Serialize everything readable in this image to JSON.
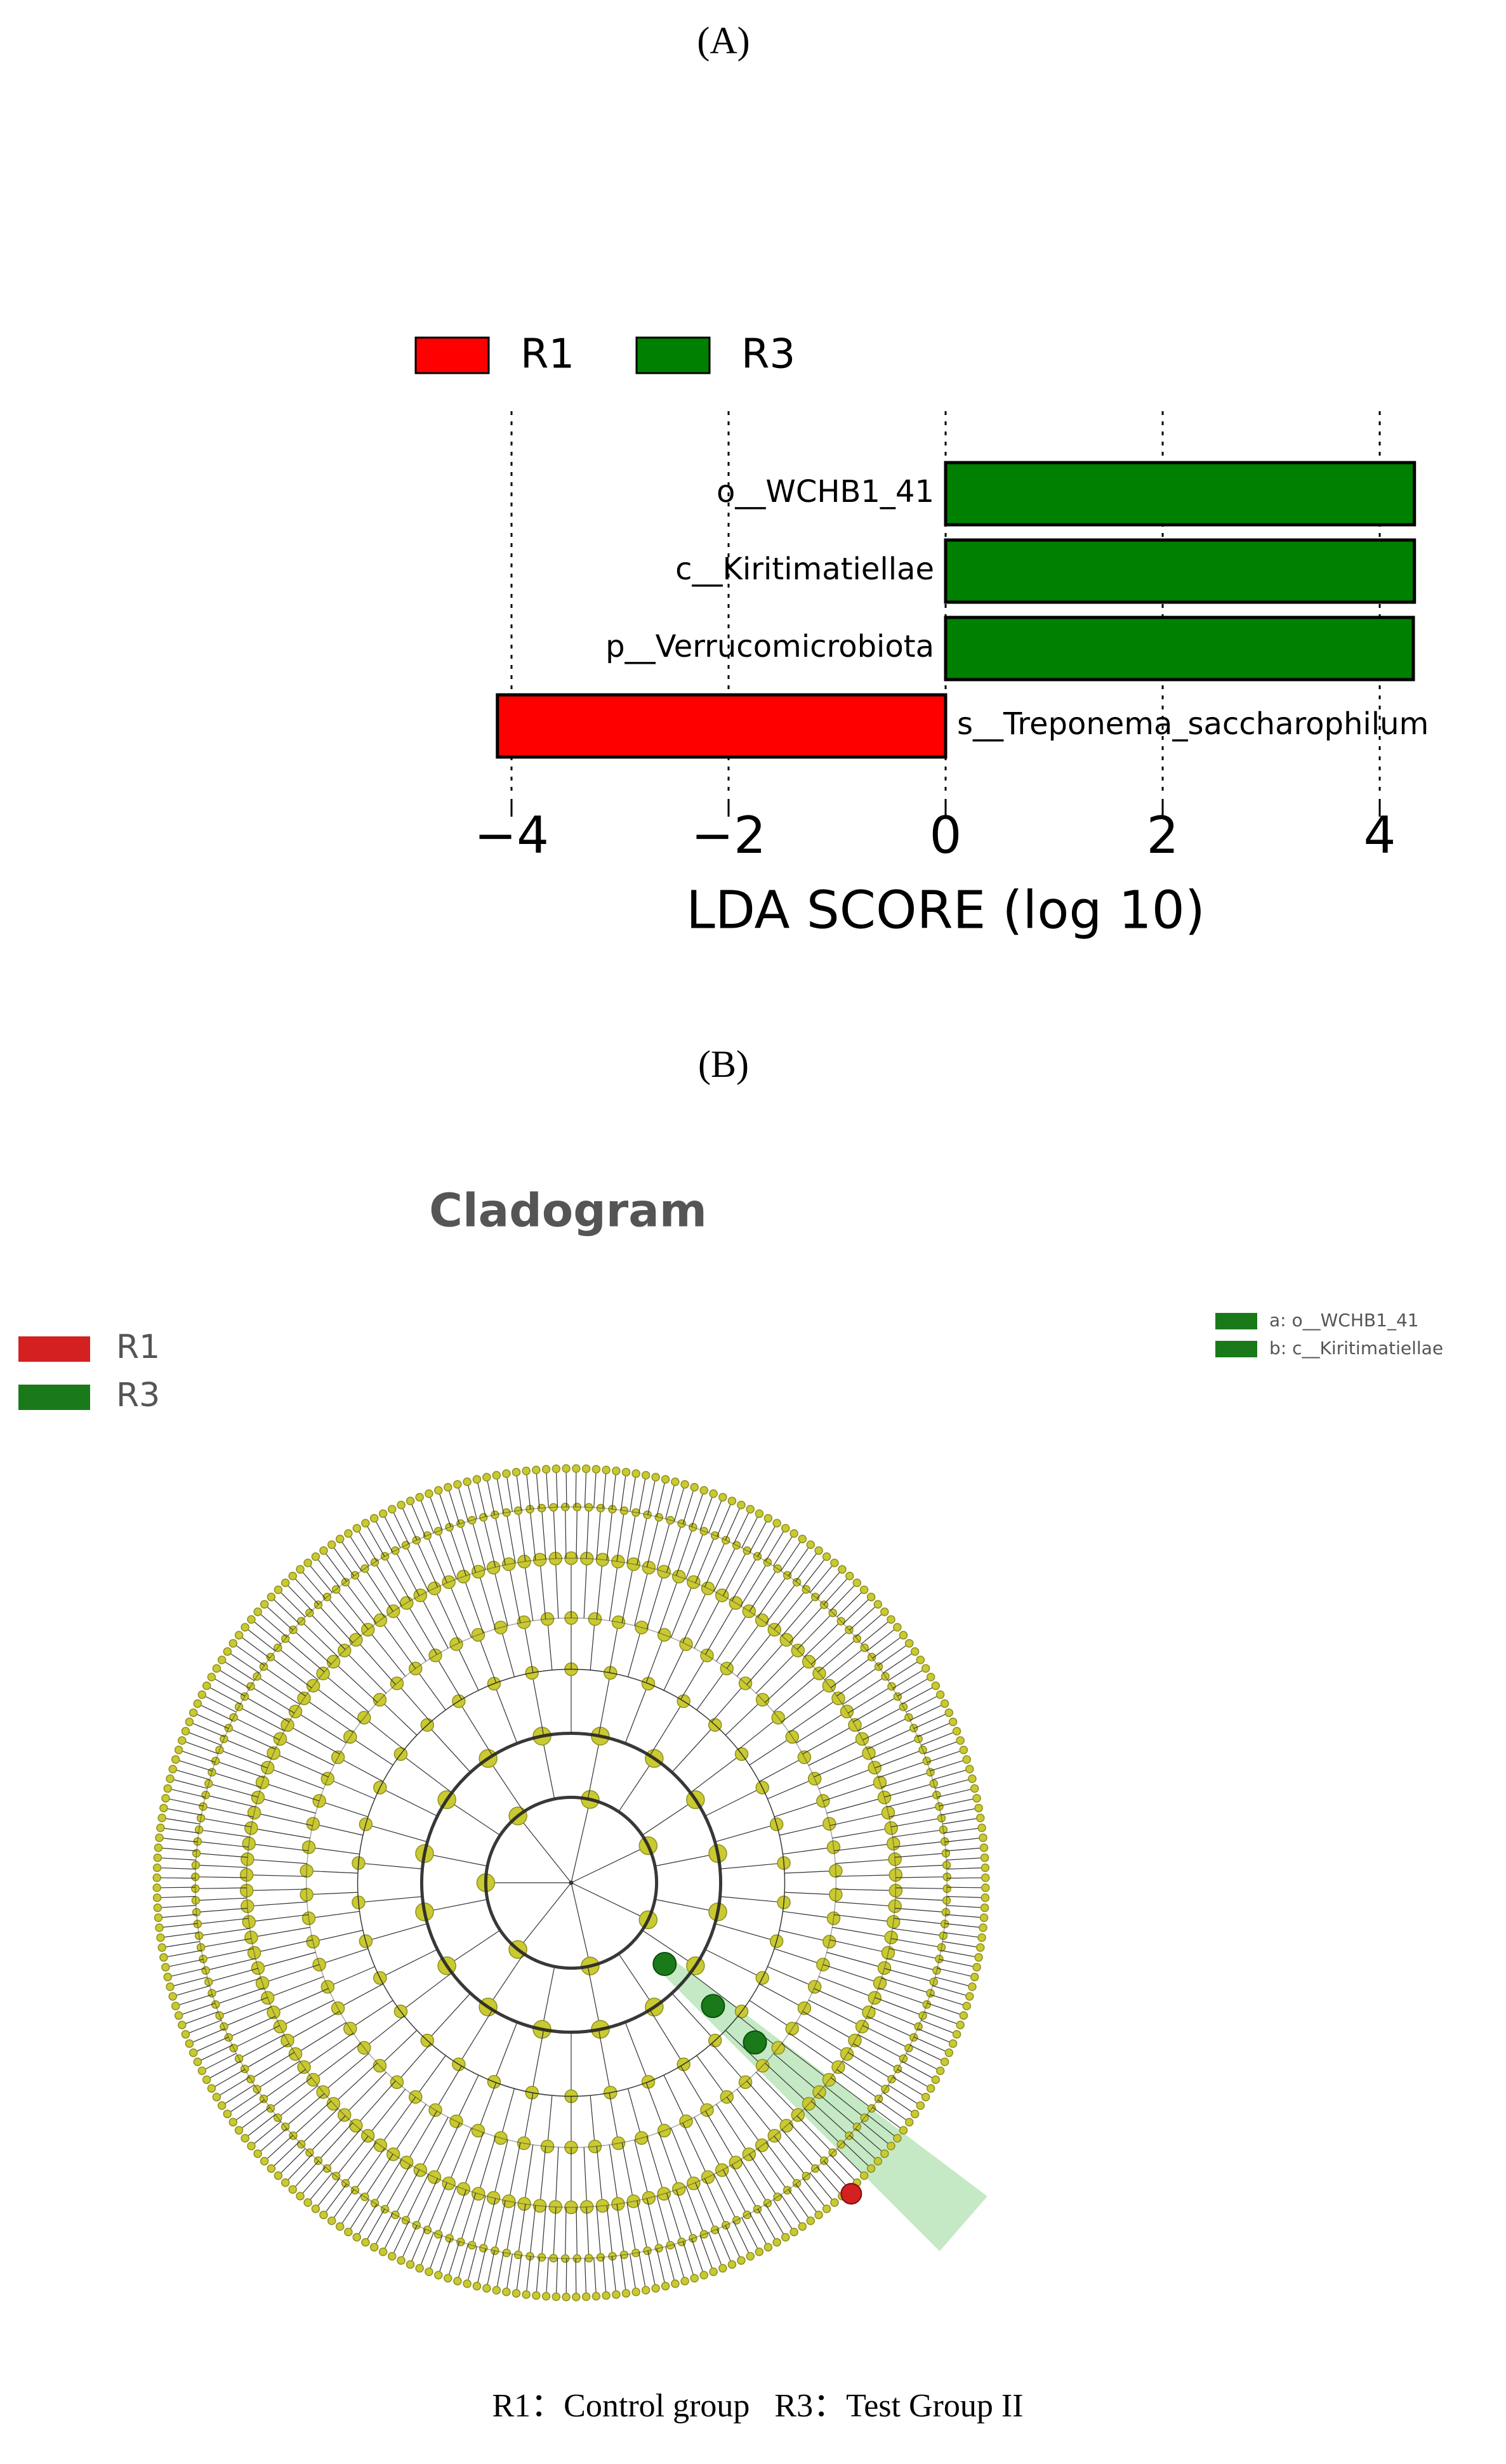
{
  "panel_labels": [
    "(A)",
    "(B)"
  ],
  "chart_data": {
    "type": "bar",
    "orientation": "horizontal",
    "categories": [
      "o__WCHB1_41",
      "c__Kiritimatiellae",
      "p__Verrucomicrobiota",
      "s__Treponema_saccharophilum"
    ],
    "series": [
      {
        "name": "R1",
        "color": "#ff0000",
        "values": [
          null,
          null,
          null,
          -4.13
        ]
      },
      {
        "name": "R3",
        "color": "#008000",
        "values": [
          4.32,
          4.32,
          4.31,
          null
        ]
      }
    ],
    "xlabel": "LDA SCORE (log 10)",
    "xlim": [
      -4.4,
      4.4
    ],
    "xticks": [
      {
        "value": -4,
        "label": "−4"
      },
      {
        "value": -2,
        "label": "−2"
      },
      0,
      2,
      4
    ],
    "grid": true
  },
  "cladogram": {
    "title": "Cladogram",
    "legend": [
      {
        "name": "R1",
        "color": "#d42020"
      },
      {
        "name": "R3",
        "color": "#1a7a1a"
      }
    ],
    "clade_labels": [
      "a: o__WCHB1_41",
      "b: c__Kiritimatiellae"
    ]
  },
  "caption": "R1：Control group   R3：Test Group II"
}
